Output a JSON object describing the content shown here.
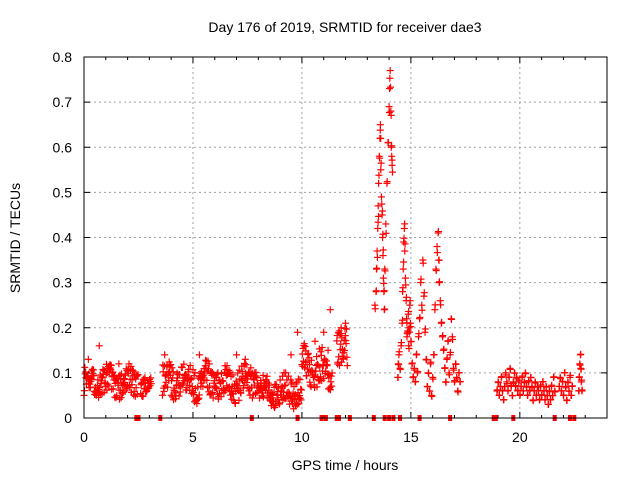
{
  "chart_data": {
    "type": "scatter",
    "title": "Day 176 of 2019, SRMTID for receiver dae3",
    "xlabel": "GPS time / hours",
    "ylabel": "SRMTID / TECUs",
    "xlim": [
      0,
      24
    ],
    "ylim": [
      0,
      0.8
    ],
    "xticks": [
      0,
      5,
      10,
      15,
      20
    ],
    "xtick_labels": [
      "0",
      "5",
      "10",
      "15",
      "20"
    ],
    "yticks": [
      0,
      0.1,
      0.2,
      0.3,
      0.4,
      0.5,
      0.6,
      0.7,
      0.8
    ],
    "ytick_labels": [
      "0",
      "0.1",
      "0.2",
      "0.3",
      "0.4",
      "0.5",
      "0.6",
      "0.7",
      "0.8"
    ],
    "grid": true,
    "series_color": "#ff0000",
    "series": [
      {
        "name": "SRMTID",
        "marker": "plus",
        "segments": [
          {
            "start": 0.0,
            "end": 2.5,
            "base": 0.08,
            "spread": 0.03,
            "spikes": [
              [
                0.2,
                0.13
              ],
              [
                0.7,
                0.16
              ],
              [
                1.6,
                0.12
              ]
            ]
          },
          {
            "start": 2.6,
            "end": 3.1,
            "base": 0.065,
            "spread": 0.02,
            "spikes": []
          },
          {
            "start": 3.6,
            "end": 8.0,
            "base": 0.08,
            "spread": 0.035,
            "spikes": [
              [
                3.7,
                0.14
              ],
              [
                5.3,
                0.14
              ],
              [
                7.0,
                0.14
              ],
              [
                7.4,
                0.13
              ]
            ]
          },
          {
            "start": 8.0,
            "end": 10.0,
            "base": 0.06,
            "spread": 0.03,
            "spikes": [
              [
                9.8,
                0.19
              ],
              [
                9.5,
                0.14
              ]
            ]
          },
          {
            "start": 10.0,
            "end": 11.0,
            "base": 0.11,
            "spread": 0.04,
            "spikes": [
              [
                10.6,
                0.17
              ],
              [
                11.0,
                0.19
              ]
            ]
          },
          {
            "start": 11.0,
            "end": 11.4,
            "base": 0.09,
            "spread": 0.03,
            "spikes": [
              [
                11.3,
                0.24
              ],
              [
                11.2,
                0.15
              ]
            ]
          },
          {
            "start": 11.6,
            "end": 12.1,
            "base": 0.15,
            "spread": 0.04,
            "spikes": [
              [
                11.8,
                0.2
              ],
              [
                12.0,
                0.21
              ]
            ]
          }
        ],
        "points": [
          [
            13.35,
            0.25
          ],
          [
            13.4,
            0.28
          ],
          [
            13.42,
            0.33
          ],
          [
            13.45,
            0.37
          ],
          [
            13.48,
            0.42
          ],
          [
            13.5,
            0.47
          ],
          [
            13.52,
            0.52
          ],
          [
            13.55,
            0.58
          ],
          [
            13.58,
            0.62
          ],
          [
            13.6,
            0.65
          ],
          [
            13.62,
            0.55
          ],
          [
            13.65,
            0.49
          ],
          [
            13.68,
            0.45
          ],
          [
            13.7,
            0.4
          ],
          [
            13.72,
            0.36
          ],
          [
            13.74,
            0.31
          ],
          [
            13.76,
            0.28
          ],
          [
            13.78,
            0.24
          ],
          [
            13.8,
            0.33
          ],
          [
            13.85,
            0.43
          ],
          [
            13.9,
            0.52
          ],
          [
            13.95,
            0.61
          ],
          [
            14.0,
            0.69
          ],
          [
            14.02,
            0.73
          ],
          [
            14.05,
            0.77
          ],
          [
            14.08,
            0.68
          ],
          [
            14.1,
            0.6
          ],
          [
            14.12,
            0.58
          ],
          [
            14.14,
            0.56
          ],
          [
            14.4,
            0.09
          ],
          [
            14.42,
            0.12
          ],
          [
            14.45,
            0.14
          ],
          [
            14.5,
            0.11
          ],
          [
            14.55,
            0.16
          ],
          [
            14.6,
            0.21
          ],
          [
            14.62,
            0.28
          ],
          [
            14.65,
            0.33
          ],
          [
            14.67,
            0.39
          ],
          [
            14.7,
            0.42
          ],
          [
            14.72,
            0.37
          ],
          [
            14.75,
            0.31
          ],
          [
            14.78,
            0.26
          ],
          [
            14.8,
            0.22
          ],
          [
            14.82,
            0.18
          ],
          [
            14.85,
            0.19
          ],
          [
            14.88,
            0.23
          ],
          [
            14.9,
            0.16
          ],
          [
            14.92,
            0.2
          ],
          [
            14.95,
            0.25
          ],
          [
            14.98,
            0.21
          ],
          [
            15.0,
            0.17
          ],
          [
            15.05,
            0.12
          ],
          [
            15.1,
            0.09
          ],
          [
            15.15,
            0.11
          ],
          [
            15.2,
            0.08
          ],
          [
            15.25,
            0.14
          ],
          [
            15.3,
            0.1
          ],
          [
            15.35,
            0.18
          ],
          [
            15.4,
            0.22
          ],
          [
            15.45,
            0.3
          ],
          [
            15.5,
            0.25
          ],
          [
            15.55,
            0.35
          ],
          [
            15.6,
            0.27
          ],
          [
            15.65,
            0.19
          ],
          [
            15.7,
            0.13
          ],
          [
            15.75,
            0.07
          ],
          [
            15.8,
            0.1
          ],
          [
            15.85,
            0.06
          ],
          [
            15.9,
            0.12
          ],
          [
            15.95,
            0.05
          ],
          [
            16.0,
            0.09
          ],
          [
            16.05,
            0.14
          ],
          [
            16.1,
            0.24
          ],
          [
            16.15,
            0.33
          ],
          [
            16.2,
            0.38
          ],
          [
            16.25,
            0.41
          ],
          [
            16.28,
            0.35
          ],
          [
            16.3,
            0.3
          ],
          [
            16.35,
            0.26
          ],
          [
            16.4,
            0.21
          ],
          [
            16.45,
            0.18
          ],
          [
            16.5,
            0.15
          ],
          [
            16.55,
            0.11
          ],
          [
            16.6,
            0.08
          ],
          [
            16.65,
            0.13
          ],
          [
            16.7,
            0.17
          ],
          [
            16.75,
            0.1
          ],
          [
            16.8,
            0.14
          ],
          [
            16.85,
            0.22
          ],
          [
            16.9,
            0.18
          ],
          [
            16.95,
            0.11
          ],
          [
            17.0,
            0.08
          ],
          [
            17.05,
            0.12
          ],
          [
            17.1,
            0.09
          ],
          [
            17.15,
            0.06
          ],
          [
            17.2,
            0.1
          ],
          [
            17.25,
            0.08
          ],
          [
            18.95,
            0.06
          ],
          [
            19.0,
            0.08
          ],
          [
            19.05,
            0.05
          ],
          [
            19.1,
            0.07
          ],
          [
            19.15,
            0.09
          ],
          [
            19.2,
            0.06
          ],
          [
            19.25,
            0.04
          ],
          [
            19.3,
            0.07
          ],
          [
            19.35,
            0.1
          ],
          [
            19.4,
            0.08
          ],
          [
            19.45,
            0.06
          ],
          [
            19.5,
            0.09
          ],
          [
            19.55,
            0.11
          ],
          [
            19.6,
            0.07
          ],
          [
            19.65,
            0.05
          ],
          [
            19.7,
            0.08
          ],
          [
            19.75,
            0.1
          ],
          [
            19.8,
            0.07
          ],
          [
            19.85,
            0.09
          ],
          [
            19.9,
            0.06
          ],
          [
            19.95,
            0.08
          ],
          [
            20.0,
            0.05
          ],
          [
            20.05,
            0.07
          ],
          [
            20.1,
            0.09
          ],
          [
            20.15,
            0.06
          ],
          [
            20.2,
            0.08
          ],
          [
            20.25,
            0.1
          ],
          [
            20.3,
            0.07
          ],
          [
            20.35,
            0.05
          ],
          [
            20.4,
            0.08
          ],
          [
            20.45,
            0.06
          ],
          [
            20.5,
            0.09
          ],
          [
            20.55,
            0.07
          ],
          [
            20.6,
            0.04
          ],
          [
            20.65,
            0.06
          ],
          [
            20.7,
            0.08
          ],
          [
            20.75,
            0.05
          ],
          [
            20.8,
            0.07
          ],
          [
            20.85,
            0.06
          ],
          [
            20.9,
            0.04
          ],
          [
            20.95,
            0.07
          ],
          [
            21.0,
            0.05
          ],
          [
            21.05,
            0.08
          ],
          [
            21.1,
            0.06
          ],
          [
            21.15,
            0.04
          ],
          [
            21.2,
            0.07
          ],
          [
            21.25,
            0.05
          ],
          [
            21.3,
            0.03
          ],
          [
            21.35,
            0.06
          ],
          [
            21.4,
            0.04
          ],
          [
            21.45,
            0.07
          ],
          [
            21.5,
            0.05
          ],
          [
            21.55,
            0.09
          ],
          [
            21.6,
            0.06
          ],
          [
            21.8,
            0.07
          ],
          [
            21.85,
            0.09
          ],
          [
            21.9,
            0.06
          ],
          [
            21.95,
            0.08
          ],
          [
            22.0,
            0.05
          ],
          [
            22.05,
            0.1
          ],
          [
            22.1,
            0.07
          ],
          [
            22.15,
            0.04
          ],
          [
            22.2,
            0.08
          ],
          [
            22.25,
            0.06
          ],
          [
            22.3,
            0.09
          ],
          [
            22.35,
            0.05
          ],
          [
            22.4,
            0.07
          ],
          [
            22.7,
            0.06
          ],
          [
            22.72,
            0.09
          ],
          [
            22.75,
            0.12
          ],
          [
            22.78,
            0.14
          ],
          [
            22.8,
            0.11
          ],
          [
            22.82,
            0.08
          ],
          [
            22.85,
            0.06
          ]
        ]
      }
    ],
    "gap_markers": [
      2.4,
      2.5,
      3.5,
      7.7,
      9.8,
      10.9,
      11.1,
      11.6,
      11.7,
      12.2,
      13.3,
      13.8,
      14.0,
      14.2,
      14.5,
      15.4,
      16.8,
      18.8,
      18.9,
      19.7,
      21.6,
      22.3,
      22.5
    ]
  }
}
